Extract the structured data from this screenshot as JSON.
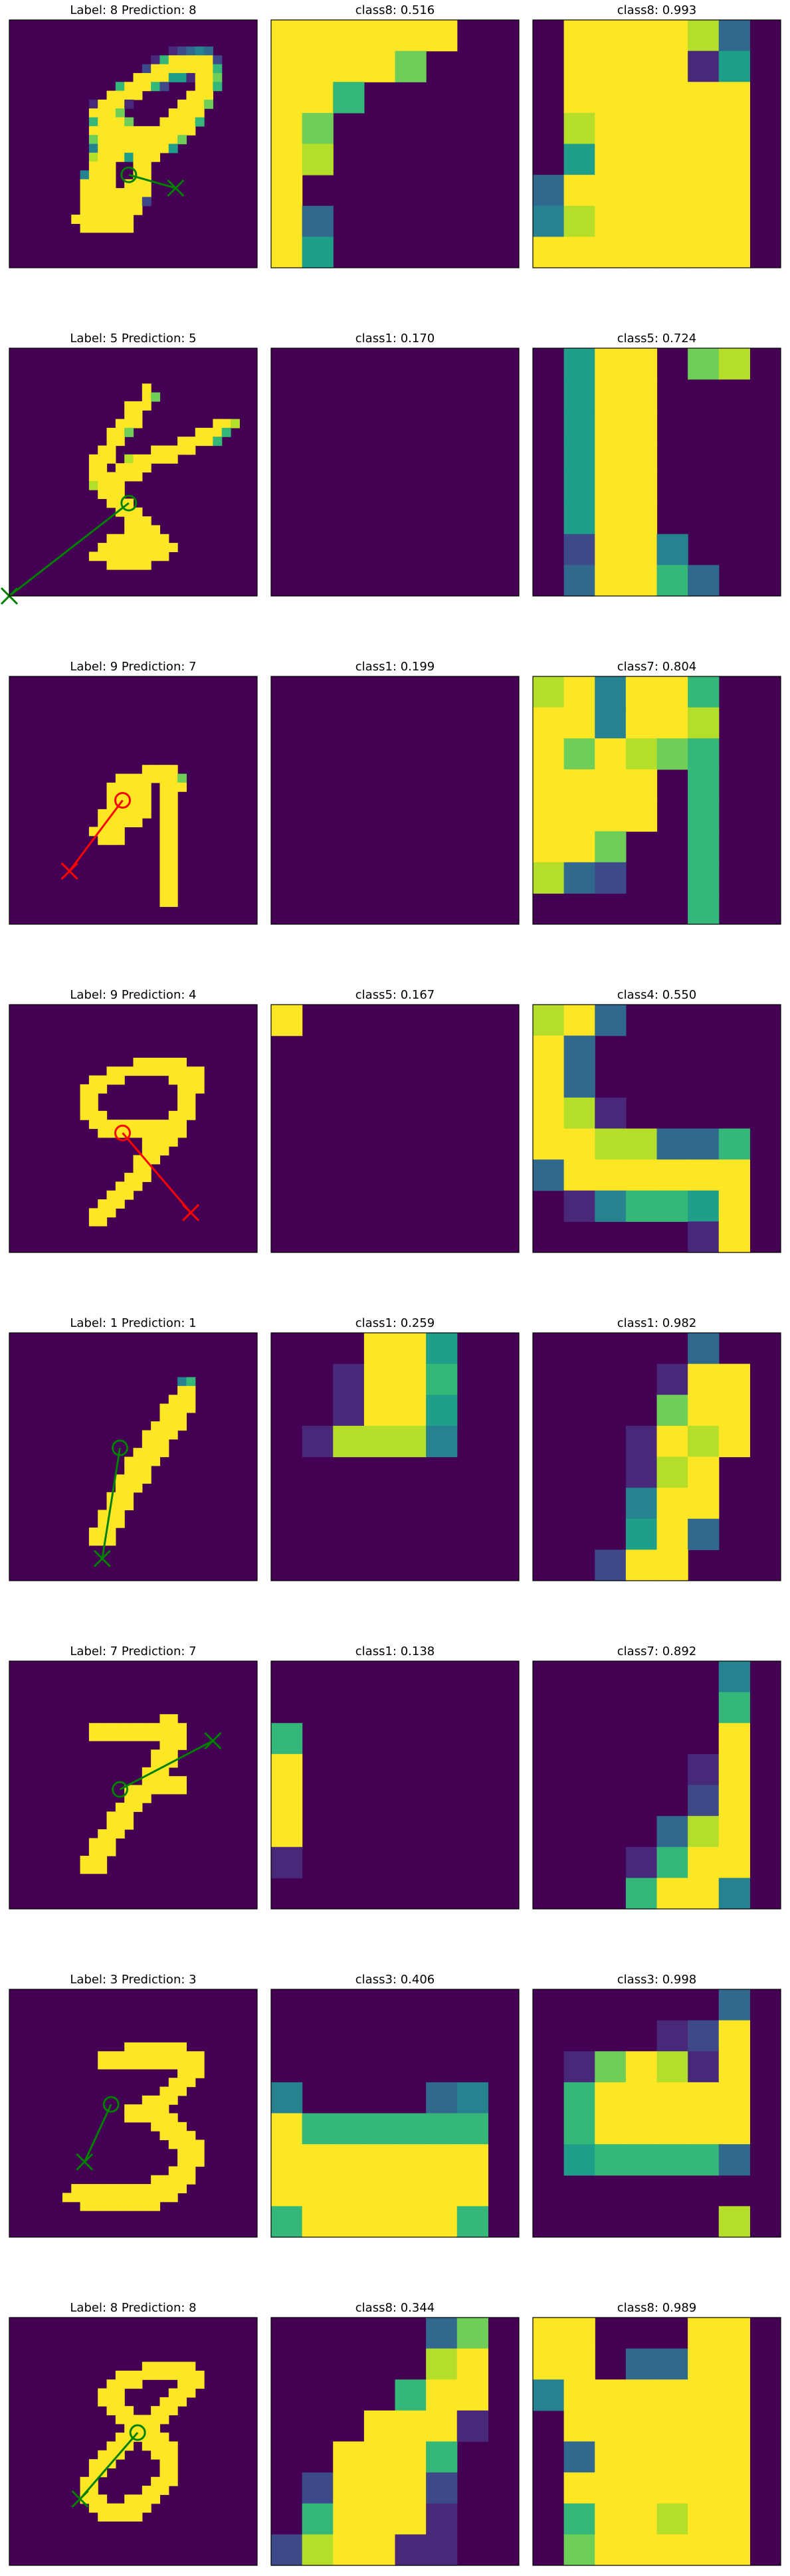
{
  "colors": {
    "background": "#440154",
    "correct": "#008000",
    "incorrect": "#ff0000",
    "colormap": "viridis"
  },
  "chart_data": [
    {
      "type": "heatmap",
      "rows": [
        {
          "titles": [
            "Label: 8 Prediction: 8",
            "class8: 0.516",
            "class8: 0.993"
          ],
          "label": 8,
          "prediction": 8,
          "correct": true,
          "classes": [
            8,
            8
          ],
          "scores": [
            0.516,
            0.993
          ],
          "image": [
            "0000000000000000000000000000",
            "0000000000000000000000000000",
            "0000000000000000000000000000",
            "0000000000000000001234300000",
            "0000000000000000169999920000",
            "0000000000000002999999960000",
            "0000000000000099995519970000",
            "0000000000006999620009960000",
            "0000000000099990000099900000",
            "0000000001999100000999700000",
            "0000000009997000009999000000",
            "0000000006999700099996000000",
            "0000000009999999999990000000",
            "0000000007999999999700000000",
            "0000000004999999995000000000",
            "0000000008999599900000000000",
            "0000000009990099000000000000",
            "0000000049990099000000000000",
            "0000000099990999000000000000",
            "0000000099999999000000000000",
            "0000000099999992000000000000",
            "0000000099999990000000000000",
            "0000000999999900000000000000",
            "0000000099999900000000000000",
            "0000000000000000000000000000",
            "0000000000000000000000000000",
            "0000000000000000000000000000",
            "0000000000000000000000000000"
          ],
          "map_a": [
            "9999990",
            "9999700",
            "9960000",
            "9700000",
            "9800000",
            "9000000",
            "9300000",
            "9500000"
          ],
          "map_b": [
            "0999983",
            "0999915",
            "0999999",
            "0899999",
            "0599999",
            "3999999",
            "4899999",
            "9999999"
          ],
          "arrow": {
            "from": [
              13.5,
              17.5
            ],
            "to": [
              18.8,
              19.0
            ]
          }
        },
        {
          "titles": [
            "Label: 5 Prediction: 5",
            "class1: 0.170",
            "class5: 0.724"
          ],
          "label": 5,
          "prediction": 5,
          "correct": true,
          "classes": [
            1,
            5
          ],
          "scores": [
            0.17,
            0.724
          ],
          "image": [
            "0000000000000000000000000000",
            "0000000000000000000000000000",
            "0000000000000000000000000000",
            "0000000000000000000000000000",
            "0000000000000009000000000000",
            "0000000000000009700000000000",
            "0000000000000999000000000000",
            "0000000000000990000000000000",
            "0000000000009990000000099800",
            "0000000000099700000009996000",
            "0000000000099000000999960000",
            "0000000000990000999990000000",
            "0000000009990899999000000000",
            "0000000009909999000000000000",
            "0000000009999990000000000000",
            "0000000008999000000000000000",
            "0000000000999000000000000000",
            "0000000000099900000000000000",
            "0000000000009990000000000000",
            "0000000000000999000000000000",
            "0000000000000999900000000000",
            "0000000000099999990000000000",
            "0000000000999999999000000000",
            "0000000009999999990000000000",
            "0000000000099999000000000000",
            "0000000000000000000000000000",
            "0000000000000000000000000000",
            "0000000000000000000000000000"
          ],
          "map_a": [
            "0000000",
            "0000000",
            "0000000",
            "0000000",
            "0000000",
            "0000000",
            "0000000",
            "0000000"
          ],
          "map_b": [
            "0599078",
            "0599000",
            "0599000",
            "0599000",
            "0599000",
            "0599000",
            "0299400",
            "0399630"
          ],
          "arrow": {
            "from": [
              13.5,
              17.5
            ],
            "to": [
              0.0,
              28.0
            ]
          }
        },
        {
          "titles": [
            "Label: 9 Prediction: 7",
            "class1: 0.199",
            "class7: 0.804"
          ],
          "label": 9,
          "prediction": 7,
          "correct": false,
          "classes": [
            1,
            7
          ],
          "scores": [
            0.199,
            0.804
          ],
          "image": [
            "0000000000000000000000000000",
            "0000000000000000000000000000",
            "0000000000000000000000000000",
            "0000000000000000000000000000",
            "0000000000000000000000000000",
            "0000000000000000000000000000",
            "0000000000000000000000000000",
            "0000000000000000000000000000",
            "0000000000000000000000000000",
            "0000000000000000000000000000",
            "0000000000000009999000000000",
            "0000000000009999999700000000",
            "0000000000099999099900000000",
            "0000000000099999099000000000",
            "0000000000099999099000000000",
            "0000000000999999099000000000",
            "0000000000999990099000000000",
            "0000000009999000099000000000",
            "0000000000999000099000000000",
            "0000000000000000099000000000",
            "0000000000000000099000000000",
            "0000000000000000099000000000",
            "0000000000000000099000000000",
            "0000000000000000099000000000",
            "0000000000000000099000000000",
            "0000000000000000099000000000",
            "0000000000000000000000000000",
            "0000000000000000000000000000"
          ],
          "map_a": [
            "0000000",
            "0000000",
            "0000000",
            "0000000",
            "0000000",
            "0000000",
            "0000000",
            "0000000"
          ],
          "map_b": [
            "8949960",
            "9949980",
            "9798760",
            "9999060",
            "9999060",
            "9970060",
            "8320060",
            "0000060"
          ],
          "arrow": {
            "from": [
              12.8,
              14.0
            ],
            "to": [
              6.8,
              22.0
            ]
          }
        },
        {
          "titles": [
            "Label: 9 Prediction: 4",
            "class5: 0.167",
            "class4: 0.550"
          ],
          "label": 9,
          "prediction": 4,
          "correct": false,
          "classes": [
            5,
            4
          ],
          "scores": [
            0.167,
            0.55
          ],
          "image": [
            "0000000000000000000000000000",
            "0000000000000000000000000000",
            "0000000000000000000000000000",
            "0000000000000000000000000000",
            "0000000000000000000000000000",
            "0000000000000000000000000000",
            "0000000000000099999900000000",
            "0000000000099999999999000000",
            "0000000009999000009999000000",
            "0000000099900000000999000000",
            "0000000099000000000990000000",
            "0000000099000000000990000000",
            "0000000099900000009990000000",
            "0000000009999999999900000000",
            "0000000000999999999900000000",
            "0000000000000009999000000000",
            "0000000000000009990000000000",
            "0000000000000099900000000000",
            "0000000000000099000000000000",
            "0000000000000999000000000000",
            "0000000000009990000000000000",
            "0000000000099900000000000000",
            "0000000000999000000000000000",
            "0000000009990000000000000000",
            "0000000009900000000000000000",
            "0000000000000000000000000000",
            "0000000000000000000000000000",
            "0000000000000000000000000000"
          ],
          "map_a": [
            "9000000",
            "0000000",
            "0000000",
            "0000000",
            "0000000",
            "0000000",
            "0000000",
            "0000000"
          ],
          "map_b": [
            "8930000",
            "9300000",
            "9300000",
            "9810000",
            "9988336",
            "3999999",
            "0146659",
            "0000019"
          ],
          "arrow": {
            "from": [
              12.8,
              14.5
            ],
            "to": [
              20.5,
              23.5
            ]
          }
        },
        {
          "titles": [
            "Label: 1 Prediction: 1",
            "class1: 0.259",
            "class1: 0.982"
          ],
          "label": 1,
          "prediction": 1,
          "correct": true,
          "classes": [
            1,
            1
          ],
          "scores": [
            0.259,
            0.982
          ],
          "image": [
            "0000000000000000000000000000",
            "0000000000000000000000000000",
            "0000000000000000000000000000",
            "0000000000000000000000000000",
            "0000000000000000000000000000",
            "0000000000000000000460000000",
            "0000000000000000000990000000",
            "0000000000000000009990000000",
            "0000000000000000099990000000",
            "0000000000000000099900000000",
            "0000000000000000999900000000",
            "0000000000000009999000000000",
            "0000000000000009990000000000",
            "0000000000000099990000000000",
            "0000000000000999900000000000",
            "0000000000000999000000000000",
            "0000000000009999000000000000",
            "0000000000009990000000000000",
            "0000000000099900000000000000",
            "0000000000099900000000000000",
            "0000000000999000000000000000",
            "0000000000999000000000000000",
            "0000000009990000000000000000",
            "0000000009990000000000000000",
            "0000000000000000000000000000",
            "0000000000000000000000000000",
            "0000000000000000000000000000",
            "0000000000000000000000000000"
          ],
          "map_a": [
            "0009950",
            "0019960",
            "0019950",
            "0188840",
            "0000000",
            "0000000",
            "0000000",
            "0000000"
          ],
          "map_b": [
            "0000030",
            "0000199",
            "0000799",
            "0001989",
            "0001890",
            "0004990",
            "0005930",
            "0029900"
          ],
          "arrow": {
            "from": [
              12.5,
              13.0
            ],
            "to": [
              10.5,
              25.5
            ]
          }
        },
        {
          "titles": [
            "Label: 7 Prediction: 7",
            "class1: 0.138",
            "class7: 0.892"
          ],
          "label": 7,
          "prediction": 7,
          "correct": true,
          "classes": [
            1,
            7
          ],
          "scores": [
            0.138,
            0.892
          ],
          "image": [
            "0000000000000000000000000000",
            "0000000000000000000000000000",
            "0000000000000000000000000000",
            "0000000000000000000000000000",
            "0000000000000000000000000000",
            "0000000000000000000000000000",
            "0000000000000000099000000000",
            "0000000009999999999900000000",
            "0000000009999999999900000000",
            "0000000000000000099900000000",
            "0000000000000000999000000000",
            "0000000000000000999000000000",
            "0000000000000009990000000000",
            "0000000000000009999900000000",
            "0000000000000999999900000000",
            "0000000000000999000000000000",
            "0000000000009990000000000000",
            "0000000000099900000000000000",
            "0000000000099900000000000000",
            "0000000000999000000000000000",
            "0000000009990000000000000000",
            "0000000009990000000000000000",
            "0000000099900000000000000000",
            "0000000099900000000000000000",
            "0000000000000000000000000000",
            "0000000000000000000000000000",
            "0000000000000000000000000000",
            "0000000000000000000000000000"
          ],
          "map_a": [
            "0000000",
            "0000000",
            "6000000",
            "9000000",
            "9000000",
            "9000000",
            "1000000",
            "0000000"
          ],
          "map_b": [
            "0000004",
            "0000006",
            "0000009",
            "0000019",
            "0000029",
            "0000389",
            "0001699",
            "0006994"
          ],
          "arrow": {
            "from": [
              12.5,
              14.5
            ],
            "to": [
              23.0,
              9.0
            ]
          }
        },
        {
          "titles": [
            "Label: 3 Prediction: 3",
            "class3: 0.406",
            "class3: 0.998"
          ],
          "label": 3,
          "prediction": 3,
          "correct": true,
          "classes": [
            3,
            3
          ],
          "scores": [
            0.406,
            0.998
          ],
          "image": [
            "0000000000000000000000000000",
            "0000000000000000000000000000",
            "0000000000000000000000000000",
            "0000000000000000000000000000",
            "0000000000000000000000000000",
            "0000000000000000000000000000",
            "0000000000000999999900000000",
            "0000000000999999999999000000",
            "0000000000999999999999000000",
            "0000000000000000000999000000",
            "0000000000000000009990000000",
            "0000000000000000099900000000",
            "0000000000000009999000000000",
            "0000000000000999990000000000",
            "0000000000000999999000000000",
            "0000000000000000999900000000",
            "0000000000000000099990000000",
            "0000000000000000009999000000",
            "0000000000000000000999000000",
            "0000000000000000000999000000",
            "0000000000000000009990000000",
            "0000000000000000999990000000",
            "0000000999999999999900000000",
            "0000009999999999999000000000",
            "0000000099999999900000000000",
            "0000000000000000000000000000",
            "0000000000000000000000000000",
            "0000000000000000000000000000"
          ],
          "map_a": [
            "0000000",
            "0000000",
            "0000000",
            "4000034",
            "9666666",
            "9999999",
            "9999999",
            "6999996"
          ],
          "map_b": [
            "0000003",
            "0000129",
            "0179819",
            "0699999",
            "0699999",
            "0566663",
            "0000000",
            "0000008"
          ],
          "arrow": {
            "from": [
              11.5,
              13.0
            ],
            "to": [
              8.5,
              19.5
            ]
          }
        },
        {
          "titles": [
            "Label: 8 Prediction: 8",
            "class8: 0.344",
            "class8: 0.989"
          ],
          "label": 8,
          "prediction": 8,
          "correct": true,
          "classes": [
            8,
            8
          ],
          "scores": [
            0.344,
            0.989
          ],
          "image": [
            "0000000000000000000000000000",
            "0000000000000000000000000000",
            "0000000000000000000000000000",
            "0000000000000000000000000000",
            "0000000000000000000000000000",
            "0000000000000009999990000000",
            "0000000000009999999999000000",
            "0000000000099990000999000000",
            "0000000000999000009990000000",
            "0000000000999000099900000000",
            "0000000000099900999000000000",
            "0000000000009999990000000000",
            "0000000000000999900000000000",
            "0000000000009999990000000000",
            "0000000000099909999000000000",
            "0000000000999000999000000000",
            "0000000009990000099000000000",
            "0000000009900000099000000000",
            "0000000099000000999000000000",
            "0000000099000009990000000000",
            "0000000099900999900000000000",
            "0000000009999999000000000000",
            "0000000000999990000000000000",
            "0000000000000000000000000000",
            "0000000000000000000000000000",
            "0000000000000000000000000000",
            "0000000000000000000000000000",
            "0000000000000000000000000000"
          ],
          "map_a": [
            "0000037",
            "0000089",
            "0000699",
            "0009991",
            "0099960",
            "0299920",
            "0699910",
            "2899110"
          ],
          "map_b": [
            "9900099",
            "9903399",
            "4999999",
            "0999999",
            "0399999",
            "0999999",
            "0699899",
            "0799999"
          ],
          "arrow": {
            "from": [
              14.5,
              13.0
            ],
            "to": [
              8.0,
              20.5
            ]
          }
        }
      ]
    }
  ]
}
